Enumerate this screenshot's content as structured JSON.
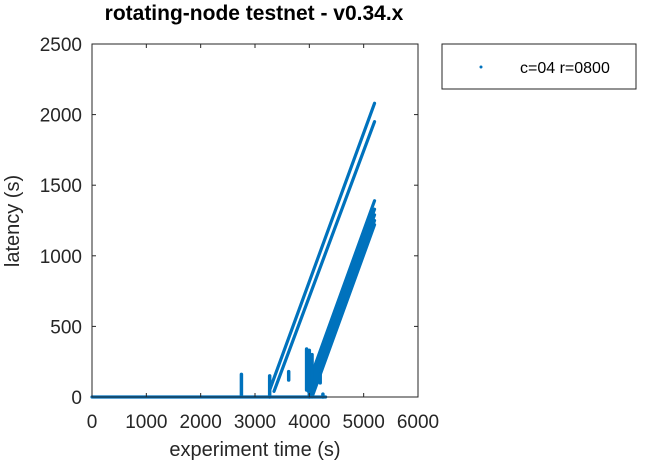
{
  "chart_data": {
    "type": "scatter",
    "title": "rotating-node testnet - v0.34.x",
    "xlabel": "experiment time (s)",
    "ylabel": "latency (s)",
    "xlim": [
      0,
      6000
    ],
    "ylim": [
      0,
      2500
    ],
    "xticks": [
      0,
      1000,
      2000,
      3000,
      4000,
      5000,
      6000
    ],
    "yticks": [
      0,
      500,
      1000,
      1500,
      2000,
      2500
    ],
    "grid": false,
    "legend_position": "outside-top-right",
    "series": [
      {
        "name": "c=04 r=0800",
        "color": "#0072BD",
        "marker": "dot",
        "segments": [
          {
            "x": [
              0,
              4300
            ],
            "y": [
              0,
              0
            ]
          },
          {
            "x": [
              3280,
              5200
            ],
            "y": [
              60,
              2080
            ]
          },
          {
            "x": [
              3350,
              5200
            ],
            "y": [
              40,
              1950
            ]
          },
          {
            "x": [
              3950,
              5200
            ],
            "y": [
              60,
              1390
            ]
          },
          {
            "x": [
              3980,
              5200
            ],
            "y": [
              40,
              1330
            ]
          },
          {
            "x": [
              4000,
              5200
            ],
            "y": [
              20,
              1290
            ]
          },
          {
            "x": [
              4020,
              5200
            ],
            "y": [
              10,
              1250
            ]
          },
          {
            "x": [
              4050,
              5200
            ],
            "y": [
              0,
              1220
            ]
          }
        ],
        "clusters": [
          {
            "x": 2750,
            "y": [
              10,
              160
            ]
          },
          {
            "x": 3270,
            "y": [
              0,
              150
            ]
          },
          {
            "x": 3620,
            "y": [
              120,
              180
            ]
          },
          {
            "x": 3950,
            "y": [
              50,
              340
            ]
          },
          {
            "x": 4000,
            "y": [
              0,
              330
            ]
          },
          {
            "x": 4050,
            "y": [
              80,
              300
            ]
          },
          {
            "x": 4200,
            "y": [
              100,
              160
            ]
          },
          {
            "x": 4250,
            "y": [
              0,
              20
            ]
          }
        ]
      }
    ]
  }
}
